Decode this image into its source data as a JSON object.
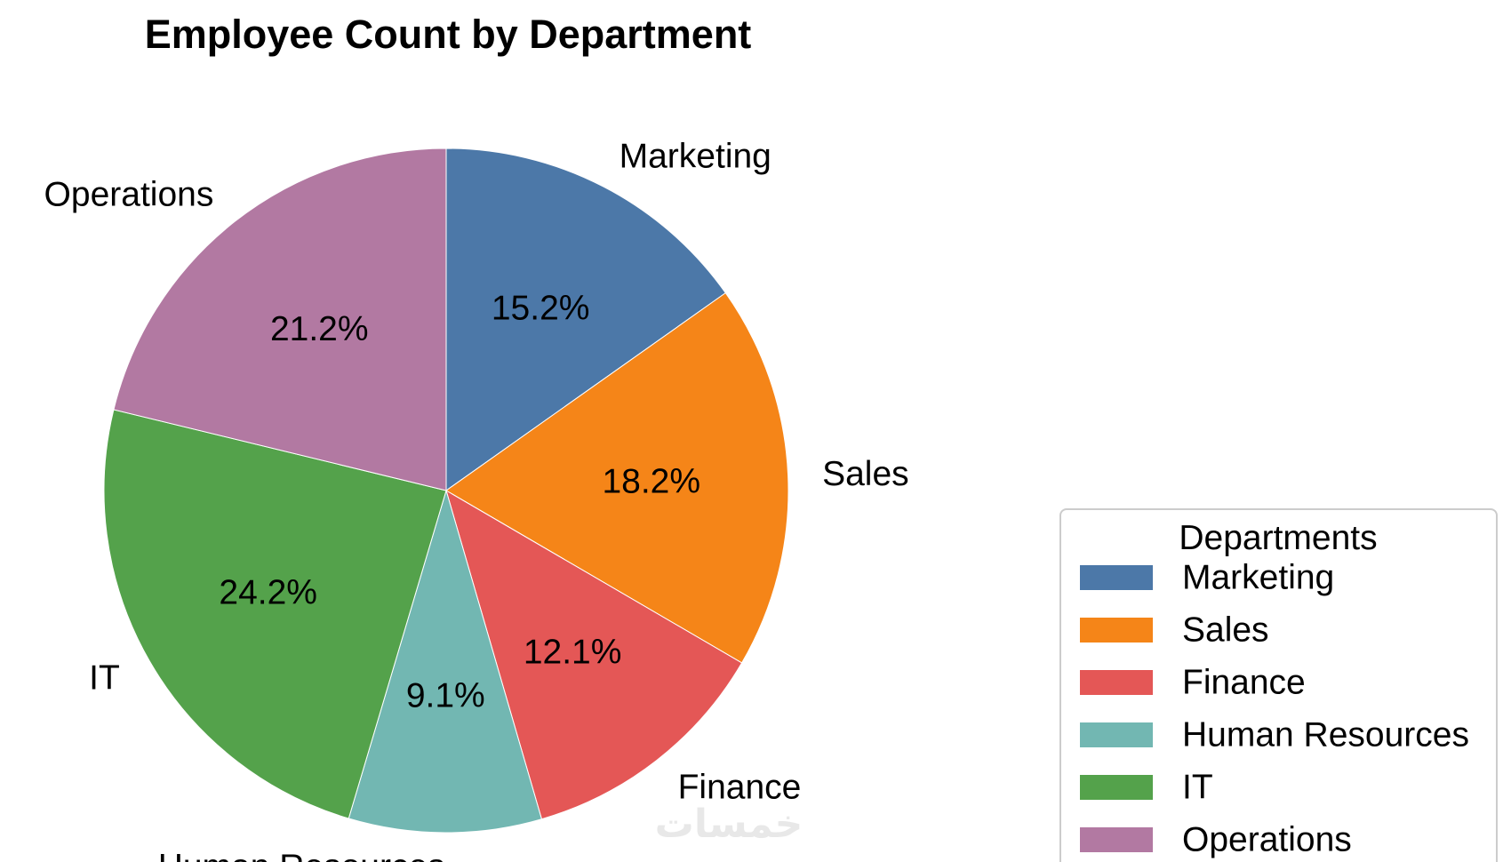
{
  "chart_data": {
    "type": "pie",
    "title": "Employee Count by Department",
    "categories": [
      "Marketing",
      "Sales",
      "Finance",
      "Human Resources",
      "IT",
      "Operations"
    ],
    "values": [
      15.2,
      18.2,
      12.1,
      9.1,
      24.2,
      21.2
    ],
    "value_labels": [
      "15.2%",
      "18.2%",
      "12.1%",
      "9.1%",
      "24.2%",
      "21.2%"
    ],
    "colors": [
      "#4c78a8",
      "#f58518",
      "#e45756",
      "#72b7b2",
      "#54a24b",
      "#b279a2"
    ],
    "start_angle": "12 o'clock",
    "direction": "clockwise",
    "legend": {
      "title": "Departments",
      "placement": "bottom-right, partly cut off"
    }
  },
  "watermark": {
    "text": "خمسات"
  }
}
